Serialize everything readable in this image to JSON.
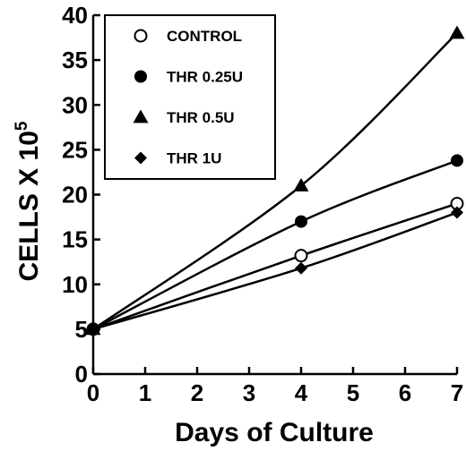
{
  "chart_data": {
    "type": "line",
    "title": "",
    "xlabel": "Days of Culture",
    "ylabel": "CELLS X 10",
    "ylabel_superscript": "5",
    "xlim": [
      0,
      7
    ],
    "ylim": [
      0,
      40
    ],
    "xticks": [
      "0",
      "1",
      "2",
      "3",
      "4",
      "5",
      "6",
      "7"
    ],
    "yticks": [
      "0",
      "5",
      "10",
      "15",
      "20",
      "25",
      "30",
      "35",
      "40"
    ],
    "grid": false,
    "legend_position": "top-left",
    "series": [
      {
        "name": "CONTROL",
        "marker": "open-circle",
        "x": [
          0,
          4,
          7
        ],
        "y": [
          5,
          13.2,
          19
        ]
      },
      {
        "name": "THR 0.25U",
        "marker": "filled-circle",
        "x": [
          0,
          4,
          7
        ],
        "y": [
          5,
          17,
          23.8
        ]
      },
      {
        "name": "THR 0.5U",
        "marker": "filled-triangle",
        "x": [
          0,
          4,
          7
        ],
        "y": [
          5,
          21,
          38
        ]
      },
      {
        "name": "THR 1U",
        "marker": "filled-diamond",
        "x": [
          0,
          4,
          7
        ],
        "y": [
          5,
          11.8,
          18
        ]
      }
    ],
    "colors": {
      "line": "#000000",
      "background": "#ffffff"
    }
  }
}
